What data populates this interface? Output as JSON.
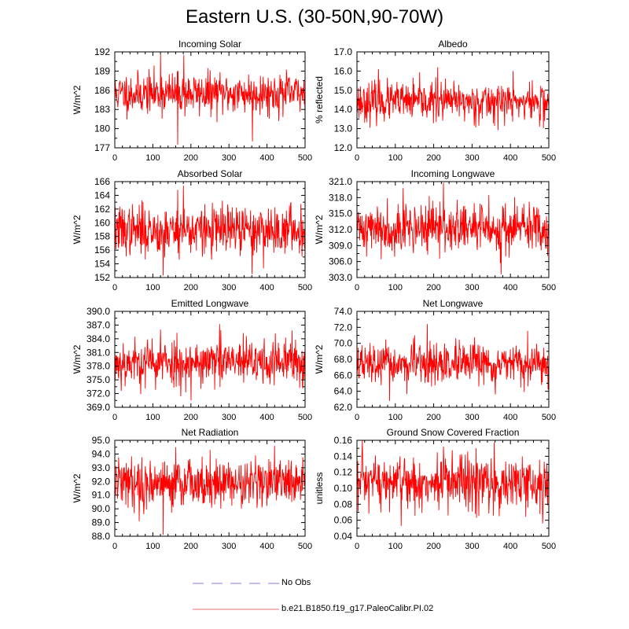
{
  "page_title": "Eastern U.S. (30-50N,90-70W)",
  "colors": {
    "series": "#ff0000",
    "obs": "#a8a8e8",
    "legend_series": "#f4a0a0",
    "axis": "#000000"
  },
  "legend": {
    "obs_label": "No Obs",
    "model_label": "b.e21.B1850.f19_g17.PaleoCalibr.PI.02"
  },
  "chart_data": [
    {
      "type": "line",
      "title": "Incoming Solar",
      "ylabel": "W/m^2",
      "xlim": [
        0,
        500
      ],
      "ylim": [
        177,
        192
      ],
      "yticks": [
        "177",
        "180",
        "183",
        "186",
        "189",
        "192"
      ],
      "xticks": [
        "0",
        "100",
        "200",
        "300",
        "400",
        "500"
      ],
      "series": [
        {
          "name": "b.e21.B1850.f19_g17.PaleoCalibr.PI.02",
          "mean": 185.5,
          "sd": 1.6,
          "n": 500,
          "seed": 11,
          "peaks": [
            [
              120,
              191.7
            ],
            [
              165,
              191.6
            ],
            [
              181,
              191.5
            ],
            [
              165,
              177.5
            ],
            [
              361,
              178.0
            ]
          ]
        }
      ]
    },
    {
      "type": "line",
      "title": "Albedo",
      "ylabel": "% reflected",
      "xlim": [
        0,
        500
      ],
      "ylim": [
        12.0,
        17.0
      ],
      "yticks": [
        "12.0",
        "13.0",
        "14.0",
        "15.0",
        "16.0",
        "17.0"
      ],
      "xticks": [
        "0",
        "100",
        "200",
        "300",
        "400",
        "500"
      ],
      "series": [
        {
          "name": "b.e21.B1850.f19_g17.PaleoCalibr.PI.02",
          "mean": 14.4,
          "sd": 0.5,
          "n": 500,
          "seed": 23,
          "peaks": [
            [
              56,
              16.1
            ],
            [
              210,
              16.2
            ],
            [
              406,
              16.0
            ],
            [
              475,
              13.1
            ]
          ]
        }
      ]
    },
    {
      "type": "line",
      "title": "Absorbed Solar",
      "ylabel": "W/m^2",
      "xlim": [
        0,
        500
      ],
      "ylim": [
        152,
        166
      ],
      "yticks": [
        "152",
        "154",
        "156",
        "158",
        "160",
        "162",
        "164",
        "166"
      ],
      "xticks": [
        "0",
        "100",
        "200",
        "300",
        "400",
        "500"
      ],
      "series": [
        {
          "name": "b.e21.B1850.f19_g17.PaleoCalibr.PI.02",
          "mean": 158.9,
          "sd": 1.8,
          "n": 500,
          "seed": 37,
          "peaks": [
            [
              180,
              165.4
            ],
            [
              127,
              152.3
            ],
            [
              360,
              152.5
            ],
            [
              165,
              164.8
            ]
          ]
        }
      ]
    },
    {
      "type": "line",
      "title": "Incoming Longwave",
      "ylabel": "W/m^2",
      "xlim": [
        0,
        500
      ],
      "ylim": [
        303.0,
        321.0
      ],
      "yticks": [
        "303.0",
        "306.0",
        "309.0",
        "312.0",
        "315.0",
        "318.0",
        "321.0"
      ],
      "xticks": [
        "0",
        "100",
        "200",
        "300",
        "400",
        "500"
      ],
      "series": [
        {
          "name": "b.e21.B1850.f19_g17.PaleoCalibr.PI.02",
          "mean": 312.3,
          "sd": 2.3,
          "n": 500,
          "seed": 41,
          "peaks": [
            [
              225,
              320.8
            ],
            [
              375,
              303.6
            ],
            [
              120,
              319.8
            ]
          ]
        }
      ]
    },
    {
      "type": "line",
      "title": "Emitted Longwave",
      "ylabel": "W/m^2",
      "xlim": [
        0,
        500
      ],
      "ylim": [
        369.0,
        390.0
      ],
      "yticks": [
        "369.0",
        "372.0",
        "375.0",
        "378.0",
        "381.0",
        "384.0",
        "387.0",
        "390.0"
      ],
      "xticks": [
        "0",
        "100",
        "200",
        "300",
        "400",
        "500"
      ],
      "series": [
        {
          "name": "b.e21.B1850.f19_g17.PaleoCalibr.PI.02",
          "mean": 378.8,
          "sd": 2.6,
          "n": 500,
          "seed": 53,
          "peaks": [
            [
              275,
              387.2
            ],
            [
              200,
              370.5
            ],
            [
              120,
              386.0
            ],
            [
              465,
              385.8
            ]
          ]
        }
      ]
    },
    {
      "type": "line",
      "title": "Net Longwave",
      "ylabel": "W/m^2",
      "xlim": [
        0,
        500
      ],
      "ylim": [
        62.0,
        74.0
      ],
      "yticks": [
        "62.0",
        "64.0",
        "66.0",
        "68.0",
        "70.0",
        "72.0",
        "74.0"
      ],
      "xticks": [
        "0",
        "100",
        "200",
        "300",
        "400",
        "500"
      ],
      "series": [
        {
          "name": "b.e21.B1850.f19_g17.PaleoCalibr.PI.02",
          "mean": 67.3,
          "sd": 1.25,
          "n": 500,
          "seed": 67,
          "peaks": [
            [
              183,
              72.4
            ],
            [
              150,
              71.0
            ],
            [
              85,
              62.8
            ],
            [
              360,
              63.6
            ]
          ]
        }
      ]
    },
    {
      "type": "line",
      "title": "Net Radiation",
      "ylabel": "W/m^2",
      "xlim": [
        0,
        500
      ],
      "ylim": [
        88.0,
        95.0
      ],
      "yticks": [
        "88.0",
        "89.0",
        "90.0",
        "91.0",
        "92.0",
        "93.0",
        "94.0",
        "95.0"
      ],
      "xticks": [
        "0",
        "100",
        "200",
        "300",
        "400",
        "500"
      ],
      "series": [
        {
          "name": "b.e21.B1850.f19_g17.PaleoCalibr.PI.02",
          "mean": 91.9,
          "sd": 0.9,
          "n": 500,
          "seed": 79,
          "peaks": [
            [
              127,
              88.1
            ],
            [
              160,
              94.5
            ],
            [
              419,
              94.6
            ],
            [
              250,
              94.3
            ]
          ]
        }
      ]
    },
    {
      "type": "line",
      "title": "Ground Snow Covered Fraction",
      "ylabel": "unitless",
      "xlim": [
        0,
        500
      ],
      "ylim": [
        0.04,
        0.16
      ],
      "yticks": [
        "0.04",
        "0.06",
        "0.08",
        "0.10",
        "0.12",
        "0.14",
        "0.16"
      ],
      "xticks": [
        "0",
        "100",
        "200",
        "300",
        "400",
        "500"
      ],
      "series": [
        {
          "name": "b.e21.B1850.f19_g17.PaleoCalibr.PI.02",
          "mean": 0.106,
          "sd": 0.018,
          "n": 500,
          "seed": 97,
          "peaks": [
            [
              357,
              0.157
            ],
            [
              225,
              0.152
            ],
            [
              483,
              0.056
            ],
            [
              370,
              0.065
            ]
          ]
        }
      ]
    }
  ]
}
